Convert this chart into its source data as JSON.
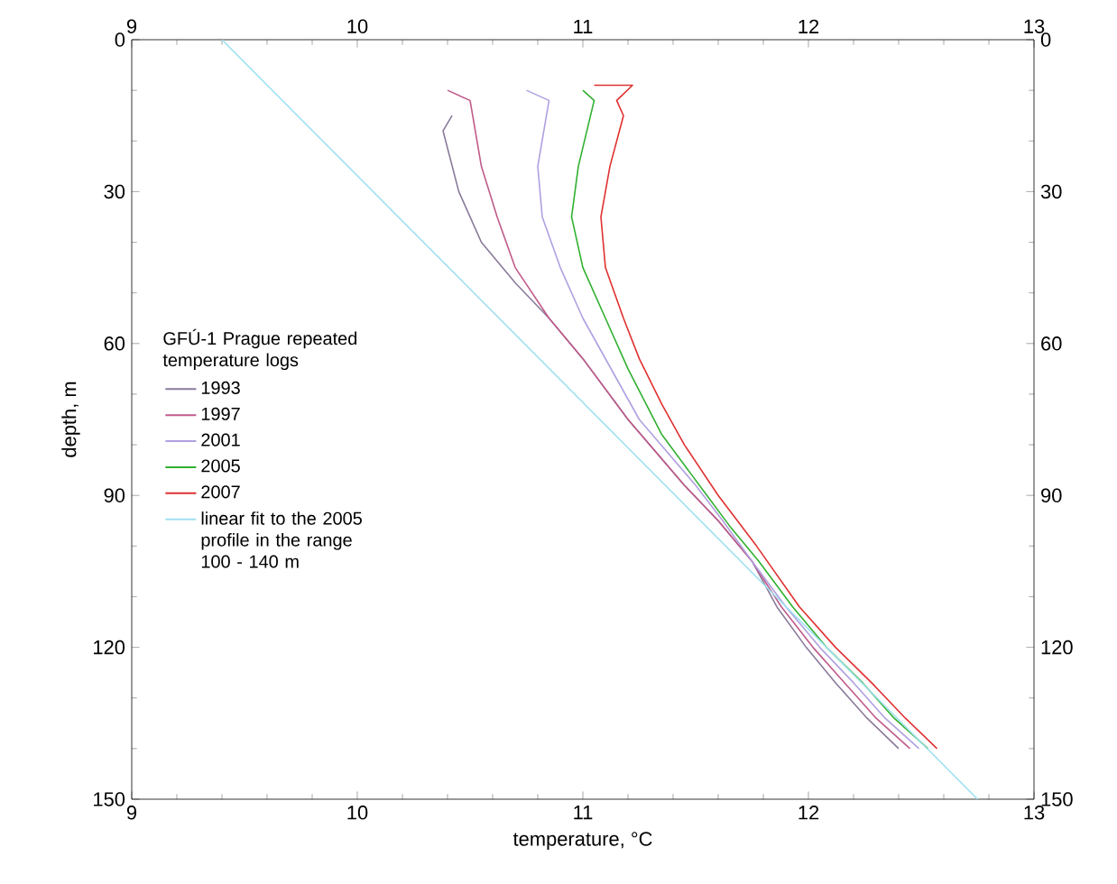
{
  "chart_data": {
    "type": "line",
    "xlabel": "temperature, °C",
    "ylabel": "depth, m",
    "legend_title": "GFÚ-1 Prague repeated temperature logs",
    "xlim": [
      9,
      13
    ],
    "xticks": [
      9,
      10,
      11,
      12,
      13
    ],
    "x2lim": [
      9,
      13
    ],
    "x2ticks": [
      9,
      10,
      11,
      12,
      13
    ],
    "ylim": [
      150,
      0
    ],
    "yticks": [
      0,
      30,
      60,
      90,
      120,
      150
    ],
    "y2lim": [
      150,
      0
    ],
    "y2ticks": [
      0,
      30,
      60,
      90,
      120,
      150
    ],
    "grid": false,
    "legend": "left",
    "marker": "none",
    "line_style": "solid",
    "series": [
      {
        "name": "1993",
        "color": "#8a7a9a",
        "x": [
          10.42,
          10.38,
          10.45,
          10.55,
          10.7,
          10.85,
          11.0,
          11.2,
          11.45,
          11.6,
          11.75,
          11.86,
          11.99,
          12.12,
          12.26,
          12.4
        ],
        "values": [
          15,
          18,
          30,
          40,
          48,
          55,
          63,
          75,
          88,
          95,
          103,
          112,
          120,
          127,
          134,
          140
        ]
      },
      {
        "name": "1997",
        "color": "#c05a8a",
        "x": [
          10.4,
          10.5,
          10.55,
          10.62,
          10.7,
          10.85,
          11.0,
          11.2,
          11.45,
          11.6,
          11.75,
          11.88,
          12.02,
          12.16,
          12.3,
          12.45
        ],
        "values": [
          10,
          12,
          25,
          35,
          45,
          55,
          63,
          75,
          88,
          95,
          103,
          112,
          120,
          127,
          134,
          140
        ]
      },
      {
        "name": "2001",
        "color": "#b0a0e0",
        "x": [
          10.75,
          10.85,
          10.8,
          10.82,
          10.9,
          11.0,
          11.1,
          11.25,
          11.5,
          11.62,
          11.75,
          11.9,
          12.05,
          12.2,
          12.34,
          12.49
        ],
        "values": [
          10,
          12,
          25,
          35,
          45,
          55,
          63,
          75,
          88,
          95,
          103,
          112,
          120,
          127,
          134,
          140
        ]
      },
      {
        "name": "2005",
        "color": "#30b030",
        "x": [
          11.0,
          11.05,
          10.98,
          10.95,
          11.0,
          11.1,
          11.2,
          11.35,
          11.55,
          11.65,
          11.78,
          11.93,
          12.08,
          12.24,
          12.38,
          12.53
        ],
        "values": [
          10,
          12,
          25,
          35,
          45,
          55,
          65,
          78,
          90,
          96,
          103,
          112,
          120,
          127,
          134,
          140
        ]
      },
      {
        "name": "2007",
        "color": "#e03030",
        "x": [
          11.05,
          11.22,
          11.15,
          11.18,
          11.12,
          11.08,
          11.1,
          11.18,
          11.25,
          11.35,
          11.45,
          11.6,
          11.77,
          11.96,
          12.12,
          12.28,
          12.43,
          12.57
        ],
        "values": [
          9,
          9,
          12,
          15,
          25,
          35,
          45,
          55,
          63,
          72,
          80,
          90,
          100,
          112,
          120,
          127,
          134,
          140
        ]
      },
      {
        "name": "linear fit to the 2005 profile in the range 100 - 140 m",
        "color": "#a0e0f0",
        "type": "line",
        "x": [
          9.4,
          12.75
        ],
        "values": [
          0,
          150
        ]
      }
    ]
  }
}
